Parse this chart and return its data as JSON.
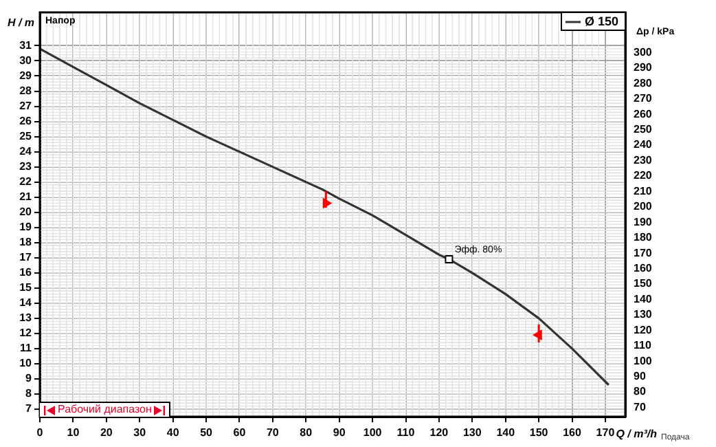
{
  "chart_data": {
    "type": "line",
    "xlabel": "Q / m³/h",
    "ylabel": "H / m",
    "y2label": "Δp / kPa",
    "x": [
      0,
      10,
      20,
      30,
      40,
      50,
      60,
      70,
      80,
      85,
      90,
      100,
      110,
      120,
      123,
      130,
      140,
      150,
      160,
      171
    ],
    "series": [
      {
        "name": "Ø 150",
        "color": "#333333",
        "values": [
          30.8,
          29.6,
          28.4,
          27.2,
          26.1,
          25.0,
          24.0,
          23.0,
          22.0,
          21.5,
          20.9,
          19.8,
          18.5,
          17.2,
          16.9,
          16.0,
          14.6,
          13.0,
          11.0,
          8.6
        ]
      },
      {
        "type": "scatter",
        "color": "#ff0000",
        "marker": "triangle",
        "x": [
          86,
          150
        ],
        "values": [
          20.6,
          11.9
        ],
        "errors": [
          [
            20.3,
            21.4
          ],
          [
            11.4,
            12.6
          ]
        ]
      }
    ],
    "xlim": [
      0,
      176
    ],
    "xticks": [
      0,
      10,
      20,
      30,
      40,
      50,
      60,
      70,
      80,
      90,
      100,
      110,
      120,
      130,
      140,
      150,
      160,
      170
    ],
    "ylim": [
      6.5,
      33.2
    ],
    "yticks": [
      7,
      8,
      9,
      10,
      11,
      12,
      13,
      14,
      15,
      16,
      17,
      18,
      19,
      20,
      21,
      22,
      23,
      24,
      25,
      26,
      27,
      28,
      29,
      30,
      31
    ],
    "y2lim": [
      64,
      326
    ],
    "y2ticks": [
      70,
      80,
      90,
      100,
      110,
      120,
      130,
      140,
      150,
      160,
      170,
      180,
      190,
      200,
      210,
      220,
      230,
      240,
      250,
      260,
      270,
      280,
      290,
      300
    ],
    "annotations": [
      "Напор",
      "Подача",
      {
        "text": "Эфф. 80%",
        "x": 123,
        "y": 16.9
      },
      "Рабочий диапазон"
    ],
    "grid": true,
    "legend": "top right",
    "marker": "none",
    "line_style": "solid"
  }
}
